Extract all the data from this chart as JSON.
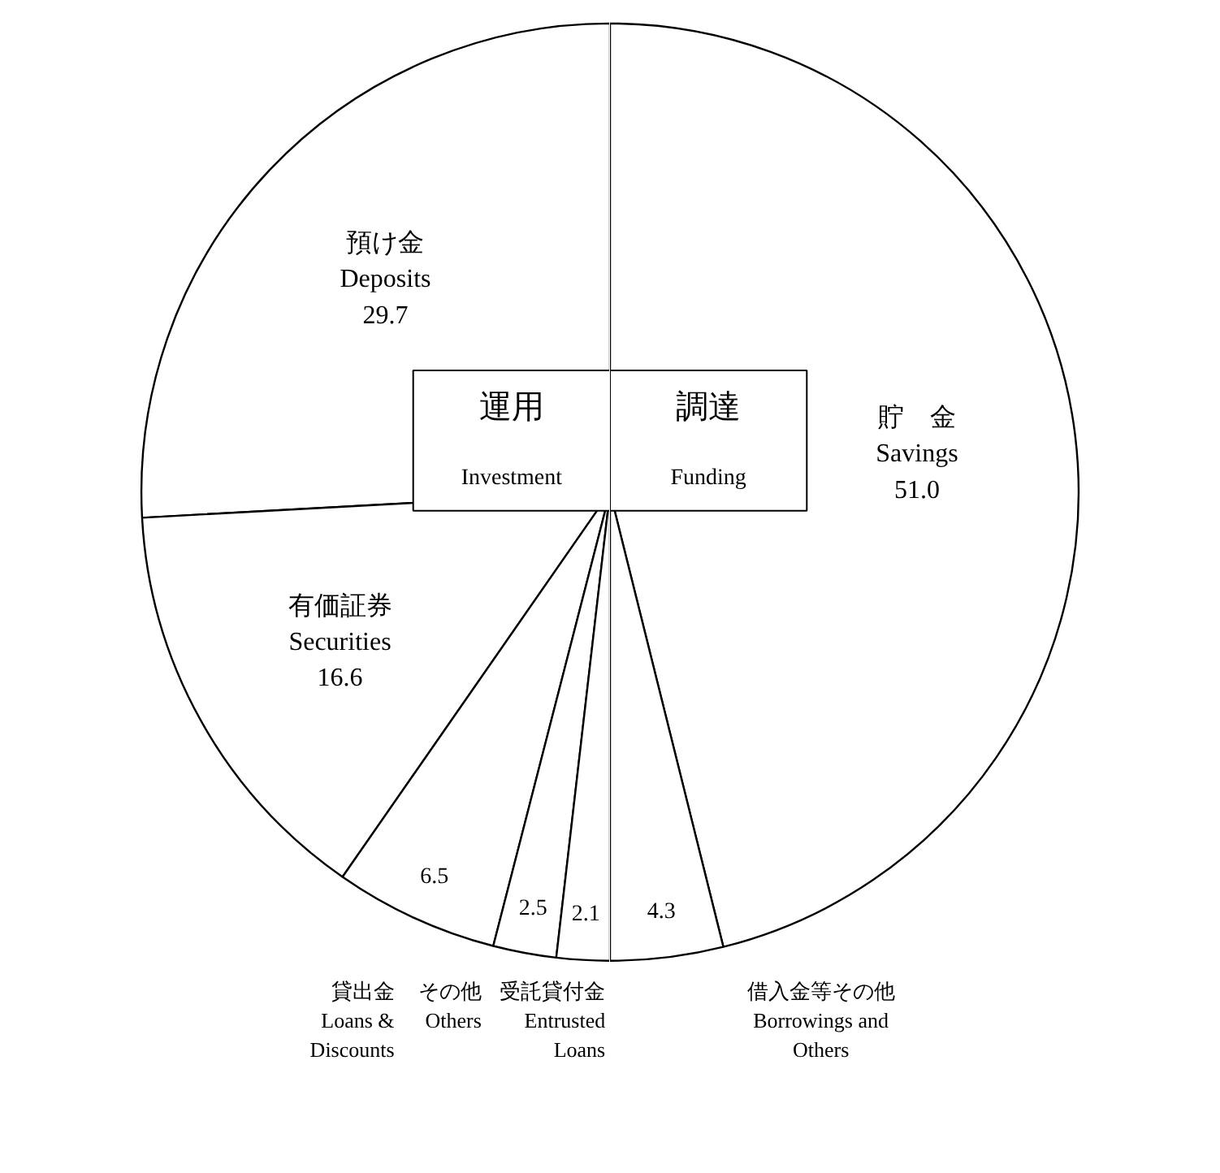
{
  "chart_data": [
    {
      "type": "other",
      "title": "運用",
      "subtitle": "Investment",
      "categories": [
        "預け金\nDeposits",
        "有価証券\nSecurities",
        "貸出金\nLoans &\nDiscounts",
        "その他\nOthers",
        "受託貸付金\nEntrusted\nLoans"
      ],
      "values": [
        29.7,
        16.6,
        6.5,
        2.5,
        2.1
      ],
      "colors": [
        "#ffffff",
        "#ffffff",
        "#ffffff",
        "#ffffff",
        "#ffffff"
      ],
      "data_labels": true
    },
    {
      "type": "other",
      "title": "調達",
      "subtitle": "Funding",
      "categories": [
        "貯　金\nSavings",
        "借入金等その他\nBorrowings and\nOthers"
      ],
      "values": [
        51.0,
        4.3
      ],
      "value_labels": [
        "51.0",
        "4.3"
      ],
      "colors": [
        "#ffffff",
        "#ffffff"
      ]
    }
  ]
}
